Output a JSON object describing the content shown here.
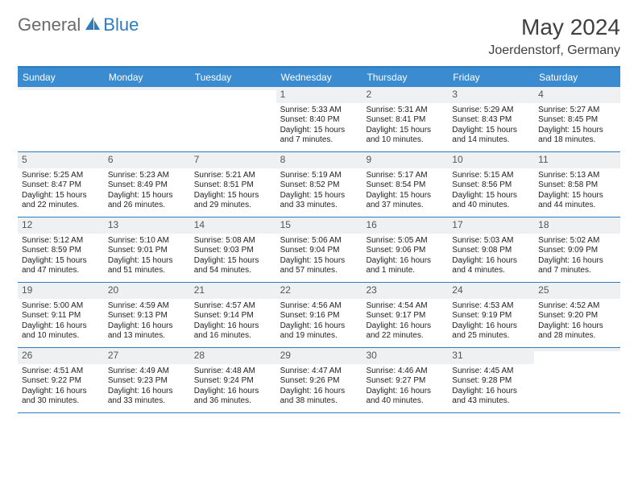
{
  "logo": {
    "general": "General",
    "blue": "Blue"
  },
  "title": "May 2024",
  "location": "Joerdenstorf, Germany",
  "colors": {
    "header_bar": "#3a8bd0",
    "accent": "#2e7cc0",
    "daynum_bg": "#eef0f1",
    "text": "#222222",
    "title_text": "#404040"
  },
  "weekdays": [
    "Sunday",
    "Monday",
    "Tuesday",
    "Wednesday",
    "Thursday",
    "Friday",
    "Saturday"
  ],
  "weeks": [
    [
      {
        "n": "",
        "sunrise": "",
        "sunset": "",
        "daylight": ""
      },
      {
        "n": "",
        "sunrise": "",
        "sunset": "",
        "daylight": ""
      },
      {
        "n": "",
        "sunrise": "",
        "sunset": "",
        "daylight": ""
      },
      {
        "n": "1",
        "sunrise": "Sunrise: 5:33 AM",
        "sunset": "Sunset: 8:40 PM",
        "daylight": "Daylight: 15 hours and 7 minutes."
      },
      {
        "n": "2",
        "sunrise": "Sunrise: 5:31 AM",
        "sunset": "Sunset: 8:41 PM",
        "daylight": "Daylight: 15 hours and 10 minutes."
      },
      {
        "n": "3",
        "sunrise": "Sunrise: 5:29 AM",
        "sunset": "Sunset: 8:43 PM",
        "daylight": "Daylight: 15 hours and 14 minutes."
      },
      {
        "n": "4",
        "sunrise": "Sunrise: 5:27 AM",
        "sunset": "Sunset: 8:45 PM",
        "daylight": "Daylight: 15 hours and 18 minutes."
      }
    ],
    [
      {
        "n": "5",
        "sunrise": "Sunrise: 5:25 AM",
        "sunset": "Sunset: 8:47 PM",
        "daylight": "Daylight: 15 hours and 22 minutes."
      },
      {
        "n": "6",
        "sunrise": "Sunrise: 5:23 AM",
        "sunset": "Sunset: 8:49 PM",
        "daylight": "Daylight: 15 hours and 26 minutes."
      },
      {
        "n": "7",
        "sunrise": "Sunrise: 5:21 AM",
        "sunset": "Sunset: 8:51 PM",
        "daylight": "Daylight: 15 hours and 29 minutes."
      },
      {
        "n": "8",
        "sunrise": "Sunrise: 5:19 AM",
        "sunset": "Sunset: 8:52 PM",
        "daylight": "Daylight: 15 hours and 33 minutes."
      },
      {
        "n": "9",
        "sunrise": "Sunrise: 5:17 AM",
        "sunset": "Sunset: 8:54 PM",
        "daylight": "Daylight: 15 hours and 37 minutes."
      },
      {
        "n": "10",
        "sunrise": "Sunrise: 5:15 AM",
        "sunset": "Sunset: 8:56 PM",
        "daylight": "Daylight: 15 hours and 40 minutes."
      },
      {
        "n": "11",
        "sunrise": "Sunrise: 5:13 AM",
        "sunset": "Sunset: 8:58 PM",
        "daylight": "Daylight: 15 hours and 44 minutes."
      }
    ],
    [
      {
        "n": "12",
        "sunrise": "Sunrise: 5:12 AM",
        "sunset": "Sunset: 8:59 PM",
        "daylight": "Daylight: 15 hours and 47 minutes."
      },
      {
        "n": "13",
        "sunrise": "Sunrise: 5:10 AM",
        "sunset": "Sunset: 9:01 PM",
        "daylight": "Daylight: 15 hours and 51 minutes."
      },
      {
        "n": "14",
        "sunrise": "Sunrise: 5:08 AM",
        "sunset": "Sunset: 9:03 PM",
        "daylight": "Daylight: 15 hours and 54 minutes."
      },
      {
        "n": "15",
        "sunrise": "Sunrise: 5:06 AM",
        "sunset": "Sunset: 9:04 PM",
        "daylight": "Daylight: 15 hours and 57 minutes."
      },
      {
        "n": "16",
        "sunrise": "Sunrise: 5:05 AM",
        "sunset": "Sunset: 9:06 PM",
        "daylight": "Daylight: 16 hours and 1 minute."
      },
      {
        "n": "17",
        "sunrise": "Sunrise: 5:03 AM",
        "sunset": "Sunset: 9:08 PM",
        "daylight": "Daylight: 16 hours and 4 minutes."
      },
      {
        "n": "18",
        "sunrise": "Sunrise: 5:02 AM",
        "sunset": "Sunset: 9:09 PM",
        "daylight": "Daylight: 16 hours and 7 minutes."
      }
    ],
    [
      {
        "n": "19",
        "sunrise": "Sunrise: 5:00 AM",
        "sunset": "Sunset: 9:11 PM",
        "daylight": "Daylight: 16 hours and 10 minutes."
      },
      {
        "n": "20",
        "sunrise": "Sunrise: 4:59 AM",
        "sunset": "Sunset: 9:13 PM",
        "daylight": "Daylight: 16 hours and 13 minutes."
      },
      {
        "n": "21",
        "sunrise": "Sunrise: 4:57 AM",
        "sunset": "Sunset: 9:14 PM",
        "daylight": "Daylight: 16 hours and 16 minutes."
      },
      {
        "n": "22",
        "sunrise": "Sunrise: 4:56 AM",
        "sunset": "Sunset: 9:16 PM",
        "daylight": "Daylight: 16 hours and 19 minutes."
      },
      {
        "n": "23",
        "sunrise": "Sunrise: 4:54 AM",
        "sunset": "Sunset: 9:17 PM",
        "daylight": "Daylight: 16 hours and 22 minutes."
      },
      {
        "n": "24",
        "sunrise": "Sunrise: 4:53 AM",
        "sunset": "Sunset: 9:19 PM",
        "daylight": "Daylight: 16 hours and 25 minutes."
      },
      {
        "n": "25",
        "sunrise": "Sunrise: 4:52 AM",
        "sunset": "Sunset: 9:20 PM",
        "daylight": "Daylight: 16 hours and 28 minutes."
      }
    ],
    [
      {
        "n": "26",
        "sunrise": "Sunrise: 4:51 AM",
        "sunset": "Sunset: 9:22 PM",
        "daylight": "Daylight: 16 hours and 30 minutes."
      },
      {
        "n": "27",
        "sunrise": "Sunrise: 4:49 AM",
        "sunset": "Sunset: 9:23 PM",
        "daylight": "Daylight: 16 hours and 33 minutes."
      },
      {
        "n": "28",
        "sunrise": "Sunrise: 4:48 AM",
        "sunset": "Sunset: 9:24 PM",
        "daylight": "Daylight: 16 hours and 36 minutes."
      },
      {
        "n": "29",
        "sunrise": "Sunrise: 4:47 AM",
        "sunset": "Sunset: 9:26 PM",
        "daylight": "Daylight: 16 hours and 38 minutes."
      },
      {
        "n": "30",
        "sunrise": "Sunrise: 4:46 AM",
        "sunset": "Sunset: 9:27 PM",
        "daylight": "Daylight: 16 hours and 40 minutes."
      },
      {
        "n": "31",
        "sunrise": "Sunrise: 4:45 AM",
        "sunset": "Sunset: 9:28 PM",
        "daylight": "Daylight: 16 hours and 43 minutes."
      },
      {
        "n": "",
        "sunrise": "",
        "sunset": "",
        "daylight": ""
      }
    ]
  ]
}
